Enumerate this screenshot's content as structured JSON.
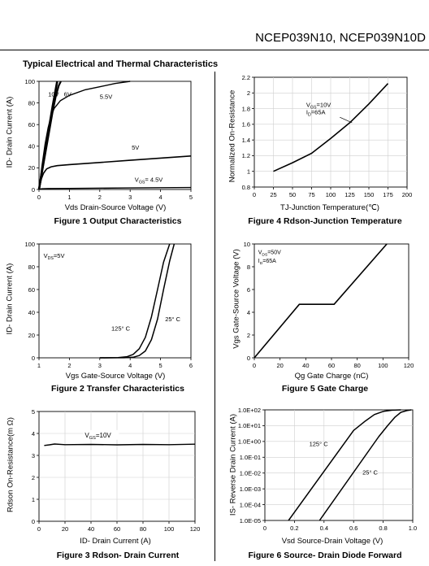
{
  "header": {
    "title": "NCEP039N10, NCEP039N10D"
  },
  "section_title": "Typical Electrical and Thermal Characteristics",
  "chart_data": [
    {
      "id": "fig1",
      "type": "line",
      "caption": "Figure 1 Output Characteristics",
      "xlabel": "Vds Drain-Source Voltage (V)",
      "ylabel": "ID- Drain Current (A)",
      "xlim": [
        0,
        5
      ],
      "ylim": [
        0,
        100
      ],
      "xticks": [
        "0",
        "1",
        "2",
        "3",
        "4",
        "5"
      ],
      "yticks": [
        "0",
        "20",
        "40",
        "60",
        "80",
        "100"
      ],
      "series": [
        {
          "name": "10V",
          "x": [
            0,
            0.15,
            0.3,
            0.45,
            0.6
          ],
          "y": [
            0,
            26,
            52,
            77,
            100
          ]
        },
        {
          "name": "6V",
          "x": [
            0,
            0.15,
            0.3,
            0.45,
            0.55,
            0.65,
            0.72
          ],
          "y": [
            0,
            24,
            48,
            72,
            86,
            96,
            100
          ]
        },
        {
          "name": "5.5V",
          "x": [
            0,
            0.1,
            0.2,
            0.3,
            0.4,
            0.5,
            0.7,
            1.0,
            1.5,
            2.0,
            2.5,
            3.0
          ],
          "y": [
            0,
            22,
            42,
            57,
            68,
            75,
            82,
            87,
            92,
            95,
            98,
            100
          ]
        },
        {
          "name": "5V",
          "x": [
            0,
            0.08,
            0.15,
            0.25,
            0.4,
            0.6,
            1.0,
            2.0,
            3.0,
            4.0,
            5.0
          ],
          "y": [
            0,
            10,
            15,
            19,
            21,
            22,
            23,
            25,
            27,
            29,
            31
          ]
        },
        {
          "name": "VGS= 4.5V",
          "x": [
            0,
            0.05,
            0.1,
            0.3,
            1.0,
            3.0,
            5.0
          ],
          "y": [
            0,
            0.5,
            0.7,
            0.9,
            1.0,
            1.4,
            1.8
          ]
        }
      ],
      "labels": {
        "s10": "10V",
        "s6": "6V",
        "s55": "5.5V",
        "s5": "5V",
        "s45": "V",
        "s45sub": "GS",
        "s45tail": "= 4.5V"
      }
    },
    {
      "id": "fig2",
      "type": "line",
      "caption": "Figure 2 Transfer Characteristics",
      "xlabel": "Vgs Gate-Source Voltage (V)",
      "ylabel": "ID- Drain Current (A)",
      "xlim": [
        1,
        6
      ],
      "ylim": [
        0,
        100
      ],
      "xticks": [
        "1",
        "2",
        "3",
        "4",
        "5",
        "6"
      ],
      "yticks": [
        "0",
        "20",
        "40",
        "60",
        "80",
        "100"
      ],
      "annotation": "VDS=5V",
      "series": [
        {
          "name": "125° C",
          "x": [
            3.0,
            3.6,
            3.9,
            4.1,
            4.3,
            4.5,
            4.7,
            4.9,
            5.1,
            5.3
          ],
          "y": [
            0,
            0.2,
            1,
            3,
            8,
            18,
            36,
            60,
            84,
            100
          ]
        },
        {
          "name": "25° C",
          "x": [
            3.0,
            3.8,
            4.1,
            4.3,
            4.5,
            4.7,
            4.9,
            5.1,
            5.3,
            5.45
          ],
          "y": [
            0,
            0.1,
            0.5,
            2,
            6,
            16,
            34,
            60,
            85,
            100
          ]
        }
      ]
    },
    {
      "id": "fig3",
      "type": "line",
      "caption": "Figure 3 Rdson- Drain Current",
      "xlabel": "ID- Drain Current (A)",
      "ylabel": "Rdson On-Resistance(m Ω)",
      "xlim": [
        0,
        120
      ],
      "ylim": [
        0,
        5
      ],
      "xticks": [
        "0",
        "20",
        "40",
        "60",
        "80",
        "100",
        "120"
      ],
      "yticks": [
        "0",
        "1",
        "2",
        "3",
        "4",
        "5"
      ],
      "annotation": "VGS=10V",
      "series": [
        {
          "name": "VGS=10V",
          "x": [
            4,
            8,
            12,
            20,
            40,
            60,
            80,
            100,
            120
          ],
          "y": [
            3.45,
            3.48,
            3.52,
            3.49,
            3.5,
            3.48,
            3.5,
            3.49,
            3.51
          ]
        }
      ]
    },
    {
      "id": "fig4",
      "type": "line",
      "caption": "Figure 4 Rdson-Junction Temperature",
      "xlabel": "TJ-Junction Temperature(℃)",
      "ylabel": "Normalized On-Resistance",
      "xlim": [
        0,
        200
      ],
      "ylim": [
        0.8,
        2.2
      ],
      "xticks": [
        "0",
        "25",
        "50",
        "75",
        "100",
        "125",
        "150",
        "175",
        "200"
      ],
      "yticks": [
        "0.8",
        "1",
        "1.2",
        "1.4",
        "1.6",
        "1.8",
        "2",
        "2.2"
      ],
      "annotation": [
        "VGS=10V",
        "ID=65A"
      ],
      "series": [
        {
          "name": "Rds(on)",
          "x": [
            25,
            50,
            75,
            100,
            125,
            150,
            175
          ],
          "y": [
            1.0,
            1.11,
            1.23,
            1.42,
            1.62,
            1.86,
            2.12
          ]
        }
      ]
    },
    {
      "id": "fig5",
      "type": "line",
      "caption": "Figure 5 Gate Charge",
      "xlabel": "Qg Gate Charge (nC)",
      "ylabel": "Vgs Gate-Source Voltage (V)",
      "xlim": [
        0,
        120
      ],
      "ylim": [
        0,
        10
      ],
      "xticks": [
        "0",
        "20",
        "40",
        "60",
        "80",
        "100",
        "120"
      ],
      "yticks": [
        "0",
        "2",
        "4",
        "6",
        "8",
        "10"
      ],
      "annotation": [
        "VDS=50V",
        "ID=65A"
      ],
      "series": [
        {
          "name": "Vgs",
          "x": [
            0,
            35,
            62,
            103
          ],
          "y": [
            0,
            4.7,
            4.7,
            10
          ]
        }
      ]
    },
    {
      "id": "fig6",
      "type": "line",
      "caption": "Figure 6 Source- Drain Diode Forward",
      "xlabel": "Vsd Source-Drain Voltage (V)",
      "ylabel": "IS- Reverse Drain Current (A)",
      "xlim": [
        0,
        1.0
      ],
      "ylim": [
        1e-05,
        100
      ],
      "yscale": "log",
      "xticks": [
        "0",
        "0.2",
        "0.4",
        "0.6",
        "0.8",
        "1.0"
      ],
      "yticks": [
        "1.0E-05",
        "1.0E-04",
        "1.0E-03",
        "1.0E-02",
        "1.0E-01",
        "1.0E+00",
        "1.0E+01",
        "1.0E+02"
      ],
      "series": [
        {
          "name": "125° C",
          "x": [
            0.16,
            0.6,
            0.68,
            0.74,
            0.8,
            0.86,
            0.92
          ],
          "y": [
            1e-05,
            5,
            20,
            50,
            80,
            95,
            100
          ]
        },
        {
          "name": "25° C",
          "x": [
            0.37,
            0.77,
            0.83,
            0.88,
            0.92,
            0.96,
            0.99
          ],
          "y": [
            1e-05,
            2,
            10,
            35,
            70,
            90,
            100
          ]
        }
      ]
    }
  ]
}
